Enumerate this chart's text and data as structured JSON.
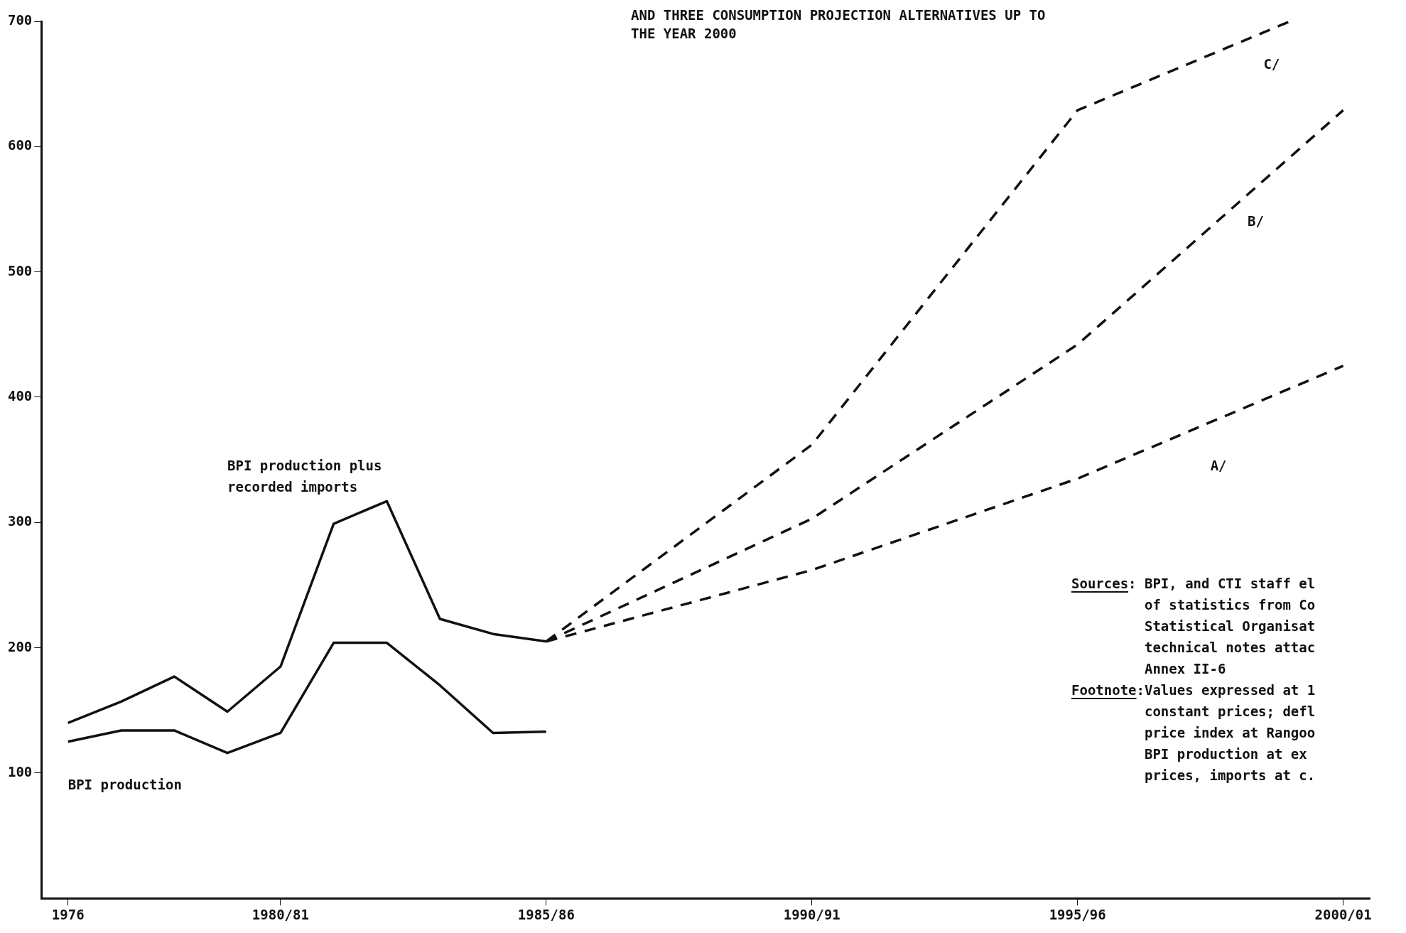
{
  "chart_data": {
    "type": "line",
    "title": "AND THREE CONSUMPTION PROJECTION ALTERNATIVES UP TO\nTHE YEAR 2000",
    "categories": [
      "1976",
      null,
      null,
      null,
      "1980/81",
      null,
      null,
      null,
      null,
      "1985/86",
      null,
      null,
      null,
      null,
      "1990/91",
      null,
      null,
      null,
      null,
      "1995/96",
      null,
      null,
      null,
      null,
      "2000/01"
    ],
    "series": [
      {
        "name": "BPI production plus\nrecorded imports",
        "color": "#111111",
        "line_style": "solid",
        "values": [
          140,
          157,
          177,
          149,
          185,
          299,
          317,
          223,
          211,
          205,
          null,
          null,
          null,
          null,
          null,
          null,
          null,
          null,
          null,
          null,
          null,
          null,
          null,
          null,
          null
        ]
      },
      {
        "name": "BPI production",
        "color": "#111111",
        "line_style": "solid",
        "values": [
          125,
          134,
          134,
          116,
          132,
          204,
          204,
          170,
          132,
          133,
          null,
          null,
          null,
          null,
          null,
          null,
          null,
          null,
          null,
          null,
          null,
          null,
          null,
          null,
          null
        ]
      },
      {
        "name": "A/",
        "color": "#111111",
        "line_style": "dashed",
        "values": [
          null,
          null,
          null,
          null,
          null,
          null,
          null,
          null,
          null,
          205,
          null,
          null,
          null,
          null,
          262,
          null,
          null,
          null,
          null,
          335,
          null,
          null,
          null,
          null,
          425
        ]
      },
      {
        "name": "B/",
        "color": "#111111",
        "line_style": "dashed",
        "values": [
          null,
          null,
          null,
          null,
          null,
          null,
          null,
          null,
          null,
          205,
          null,
          null,
          null,
          null,
          303,
          null,
          null,
          null,
          null,
          442,
          null,
          null,
          null,
          null,
          629
        ]
      },
      {
        "name": "C/",
        "color": "#111111",
        "line_style": "dashed",
        "values": [
          null,
          null,
          null,
          null,
          null,
          null,
          null,
          null,
          null,
          205,
          null,
          null,
          null,
          null,
          362,
          null,
          null,
          null,
          null,
          629,
          null,
          null,
          null,
          700,
          null
        ]
      }
    ],
    "ylim": [
      0,
      700
    ],
    "yticks": [
      100,
      200,
      300,
      400,
      500,
      600,
      700
    ],
    "grid": false,
    "legend": false,
    "marker": "none",
    "annotations": [
      "Sources: BPI, and CTI staff el\nof statistics from Co\nStatistical Organisat\ntechnical notes attac\nAnnex II-6",
      "Footnote:Values expressed at 1\nconstant prices; defl\nprice index at Rangoo\nBPI production at ex\nprices, imports at c."
    ]
  }
}
